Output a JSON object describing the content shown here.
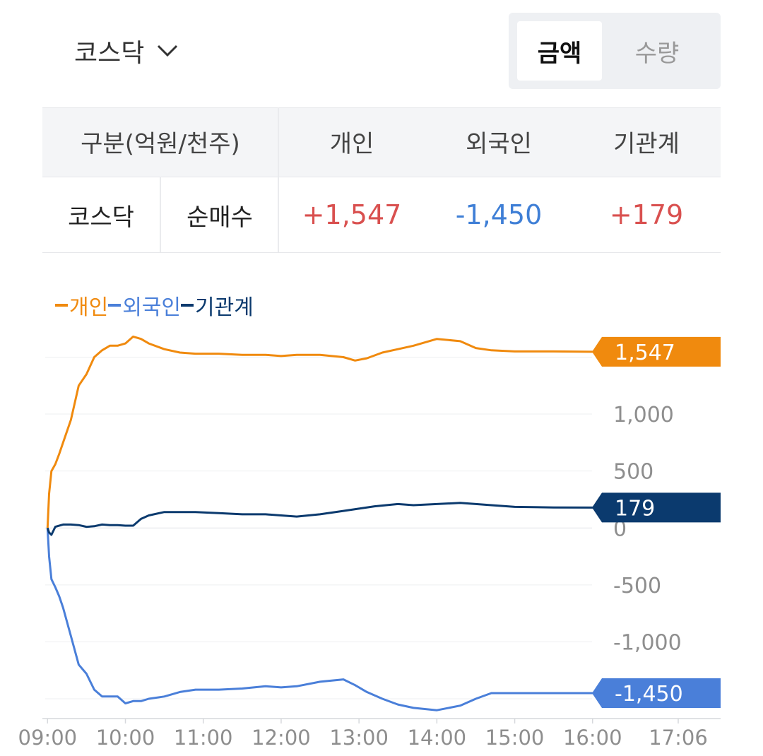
{
  "market": {
    "label": "코스닥",
    "icon": "chevron-down-icon"
  },
  "toggle": {
    "amount": "금액",
    "quantity": "수량",
    "selected": "amount"
  },
  "summary": {
    "header": [
      "구분(억원/천주)",
      "개인",
      "외국인",
      "기관계"
    ],
    "row": {
      "market": "코스닥",
      "type": "순매수",
      "individual": "+1,547",
      "foreign": "-1,450",
      "institution": "+179"
    }
  },
  "colors": {
    "individual": "#f08a0e",
    "foreign": "#4a7fd9",
    "institution": "#0b3a6e",
    "positive": "#d9504f",
    "negative": "#3f7fd6"
  },
  "chart_data": {
    "type": "line",
    "legend": [
      "개인",
      "외국인",
      "기관계"
    ],
    "yticks": [
      "1,000",
      "500",
      "0",
      "-500",
      "-1,000"
    ],
    "ytick_values": [
      1000,
      500,
      0,
      -500,
      -1000
    ],
    "xticks": [
      "09:00",
      "10:00",
      "11:00",
      "12:00",
      "13:00",
      "14:00",
      "15:00",
      "16:00",
      "17:06"
    ],
    "xtick_values": [
      9.0,
      10.0,
      11.0,
      12.0,
      13.0,
      14.0,
      15.0,
      16.0,
      17.1
    ],
    "ylim": [
      -1630,
      1720
    ],
    "xlim": [
      8.97,
      17.1
    ],
    "last_labels": {
      "individual": "1,547",
      "institution": "179",
      "foreign": "-1,450"
    },
    "series": [
      {
        "name": "개인",
        "key": "individual",
        "x": [
          9.0,
          9.02,
          9.05,
          9.1,
          9.15,
          9.2,
          9.3,
          9.4,
          9.5,
          9.6,
          9.7,
          9.8,
          9.9,
          10.0,
          10.1,
          10.2,
          10.3,
          10.5,
          10.7,
          10.9,
          11.2,
          11.5,
          11.8,
          12.0,
          12.2,
          12.5,
          12.8,
          12.95,
          13.1,
          13.3,
          13.5,
          13.7,
          14.0,
          14.3,
          14.5,
          14.7,
          15.0,
          15.5,
          16.0,
          16.5,
          16.95
        ],
        "y": [
          0,
          300,
          500,
          560,
          650,
          750,
          950,
          1250,
          1350,
          1500,
          1560,
          1600,
          1600,
          1620,
          1680,
          1660,
          1620,
          1570,
          1540,
          1530,
          1530,
          1520,
          1520,
          1510,
          1520,
          1520,
          1500,
          1470,
          1490,
          1540,
          1570,
          1600,
          1660,
          1640,
          1580,
          1560,
          1550,
          1550,
          1547,
          1547,
          1547
        ]
      },
      {
        "name": "외국인",
        "key": "foreign",
        "x": [
          9.0,
          9.02,
          9.05,
          9.1,
          9.15,
          9.2,
          9.3,
          9.4,
          9.5,
          9.6,
          9.7,
          9.8,
          9.9,
          10.0,
          10.1,
          10.2,
          10.3,
          10.5,
          10.7,
          10.9,
          11.2,
          11.5,
          11.8,
          12.0,
          12.2,
          12.5,
          12.8,
          12.95,
          13.1,
          13.3,
          13.5,
          13.7,
          14.0,
          14.3,
          14.5,
          14.7,
          15.0,
          15.5,
          16.0,
          16.5,
          16.95
        ],
        "y": [
          0,
          -250,
          -450,
          -520,
          -600,
          -700,
          -950,
          -1200,
          -1280,
          -1420,
          -1480,
          -1480,
          -1480,
          -1540,
          -1520,
          -1520,
          -1500,
          -1480,
          -1440,
          -1420,
          -1420,
          -1410,
          -1390,
          -1400,
          -1390,
          -1350,
          -1330,
          -1380,
          -1440,
          -1500,
          -1550,
          -1580,
          -1600,
          -1560,
          -1500,
          -1450,
          -1450,
          -1450,
          -1450,
          -1450,
          -1450
        ]
      },
      {
        "name": "기관계",
        "key": "institution",
        "x": [
          9.0,
          9.02,
          9.05,
          9.1,
          9.2,
          9.3,
          9.4,
          9.5,
          9.6,
          9.7,
          9.8,
          9.9,
          10.0,
          10.1,
          10.2,
          10.3,
          10.5,
          10.7,
          10.9,
          11.2,
          11.5,
          11.8,
          12.0,
          12.2,
          12.5,
          12.8,
          13.0,
          13.2,
          13.5,
          13.7,
          14.0,
          14.3,
          14.5,
          14.7,
          15.0,
          15.5,
          16.0,
          16.5,
          16.95
        ],
        "y": [
          0,
          -40,
          -60,
          10,
          30,
          30,
          25,
          10,
          15,
          30,
          25,
          25,
          20,
          20,
          80,
          110,
          140,
          140,
          140,
          130,
          120,
          120,
          110,
          100,
          120,
          150,
          170,
          190,
          210,
          200,
          210,
          220,
          210,
          200,
          185,
          180,
          179,
          179,
          179
        ]
      }
    ]
  }
}
